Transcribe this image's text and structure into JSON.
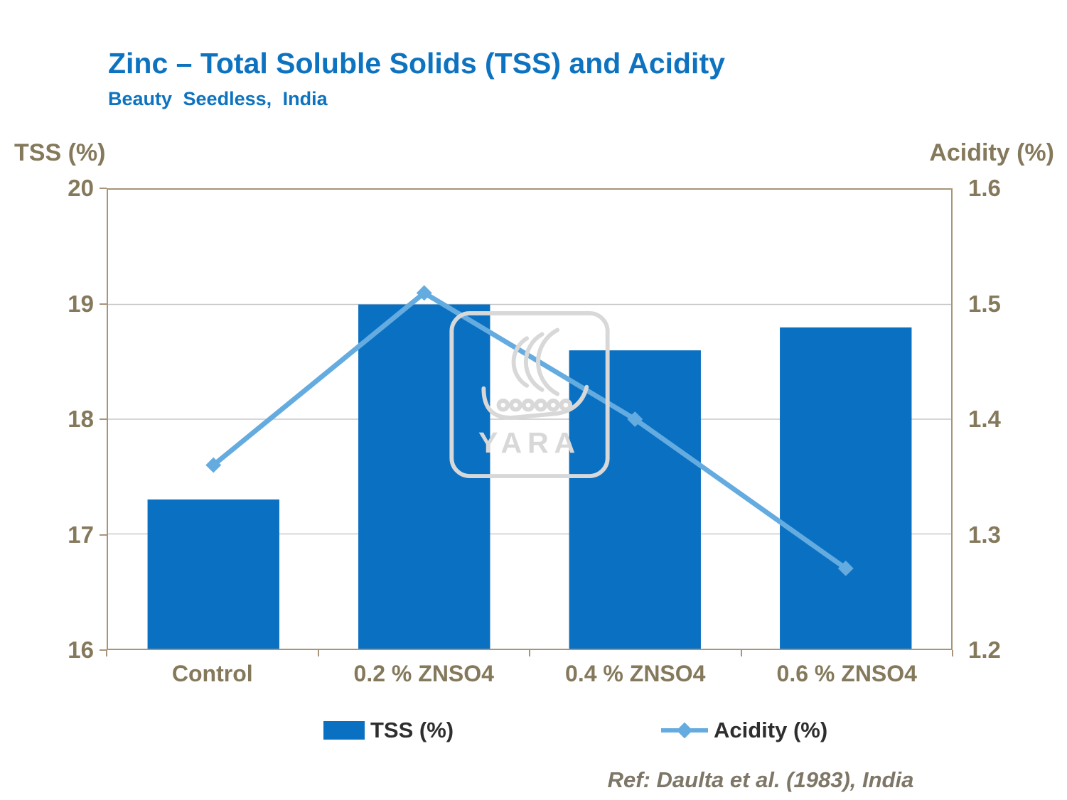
{
  "title": "Zinc – Total Soluble Solids (TSS) and Acidity",
  "subtitle": "Beauty Seedless, India",
  "ref": "Ref: Daulta et al. (1983), India",
  "watermark": "YARA",
  "legend": [
    {
      "label": "TSS (%)"
    },
    {
      "label": "Acidity (%)"
    }
  ],
  "colors": {
    "bar": "#0A70C2",
    "line": "#64ABE0",
    "title": "#0D73C0",
    "axis_text": "#85795C",
    "border": "#A89478",
    "grid": "#C9C9C9",
    "legend_text": "#2E2E2E",
    "watermark_gray": "#D8D8D8"
  },
  "chart_data": {
    "type": "bar",
    "subtype": "bar+line dual axis",
    "categories": [
      "Control",
      "0.2 % ZNSO4",
      "0.4 % ZNSO4",
      "0.6 % ZNSO4"
    ],
    "series": [
      {
        "name": "TSS (%)",
        "type": "bar",
        "axis": "left",
        "values": [
          17.3,
          19.0,
          18.6,
          18.8
        ]
      },
      {
        "name": "Acidity (%)",
        "type": "line",
        "axis": "right",
        "values": [
          1.36,
          1.51,
          1.4,
          1.27
        ]
      }
    ],
    "title": "Zinc – Total Soluble Solids (TSS) and Acidity",
    "subtitle": "Beauty Seedless, India",
    "left_axis": {
      "label": "TSS (%)",
      "min": 16,
      "max": 20,
      "ticks": [
        20,
        19,
        18,
        17,
        16
      ]
    },
    "right_axis": {
      "label": "Acidity (%)",
      "min": 1.2,
      "max": 1.6,
      "ticks": [
        1.6,
        1.5,
        1.4,
        1.3,
        1.2
      ]
    },
    "grid": "horizontal light gray",
    "legend_position": "bottom"
  }
}
